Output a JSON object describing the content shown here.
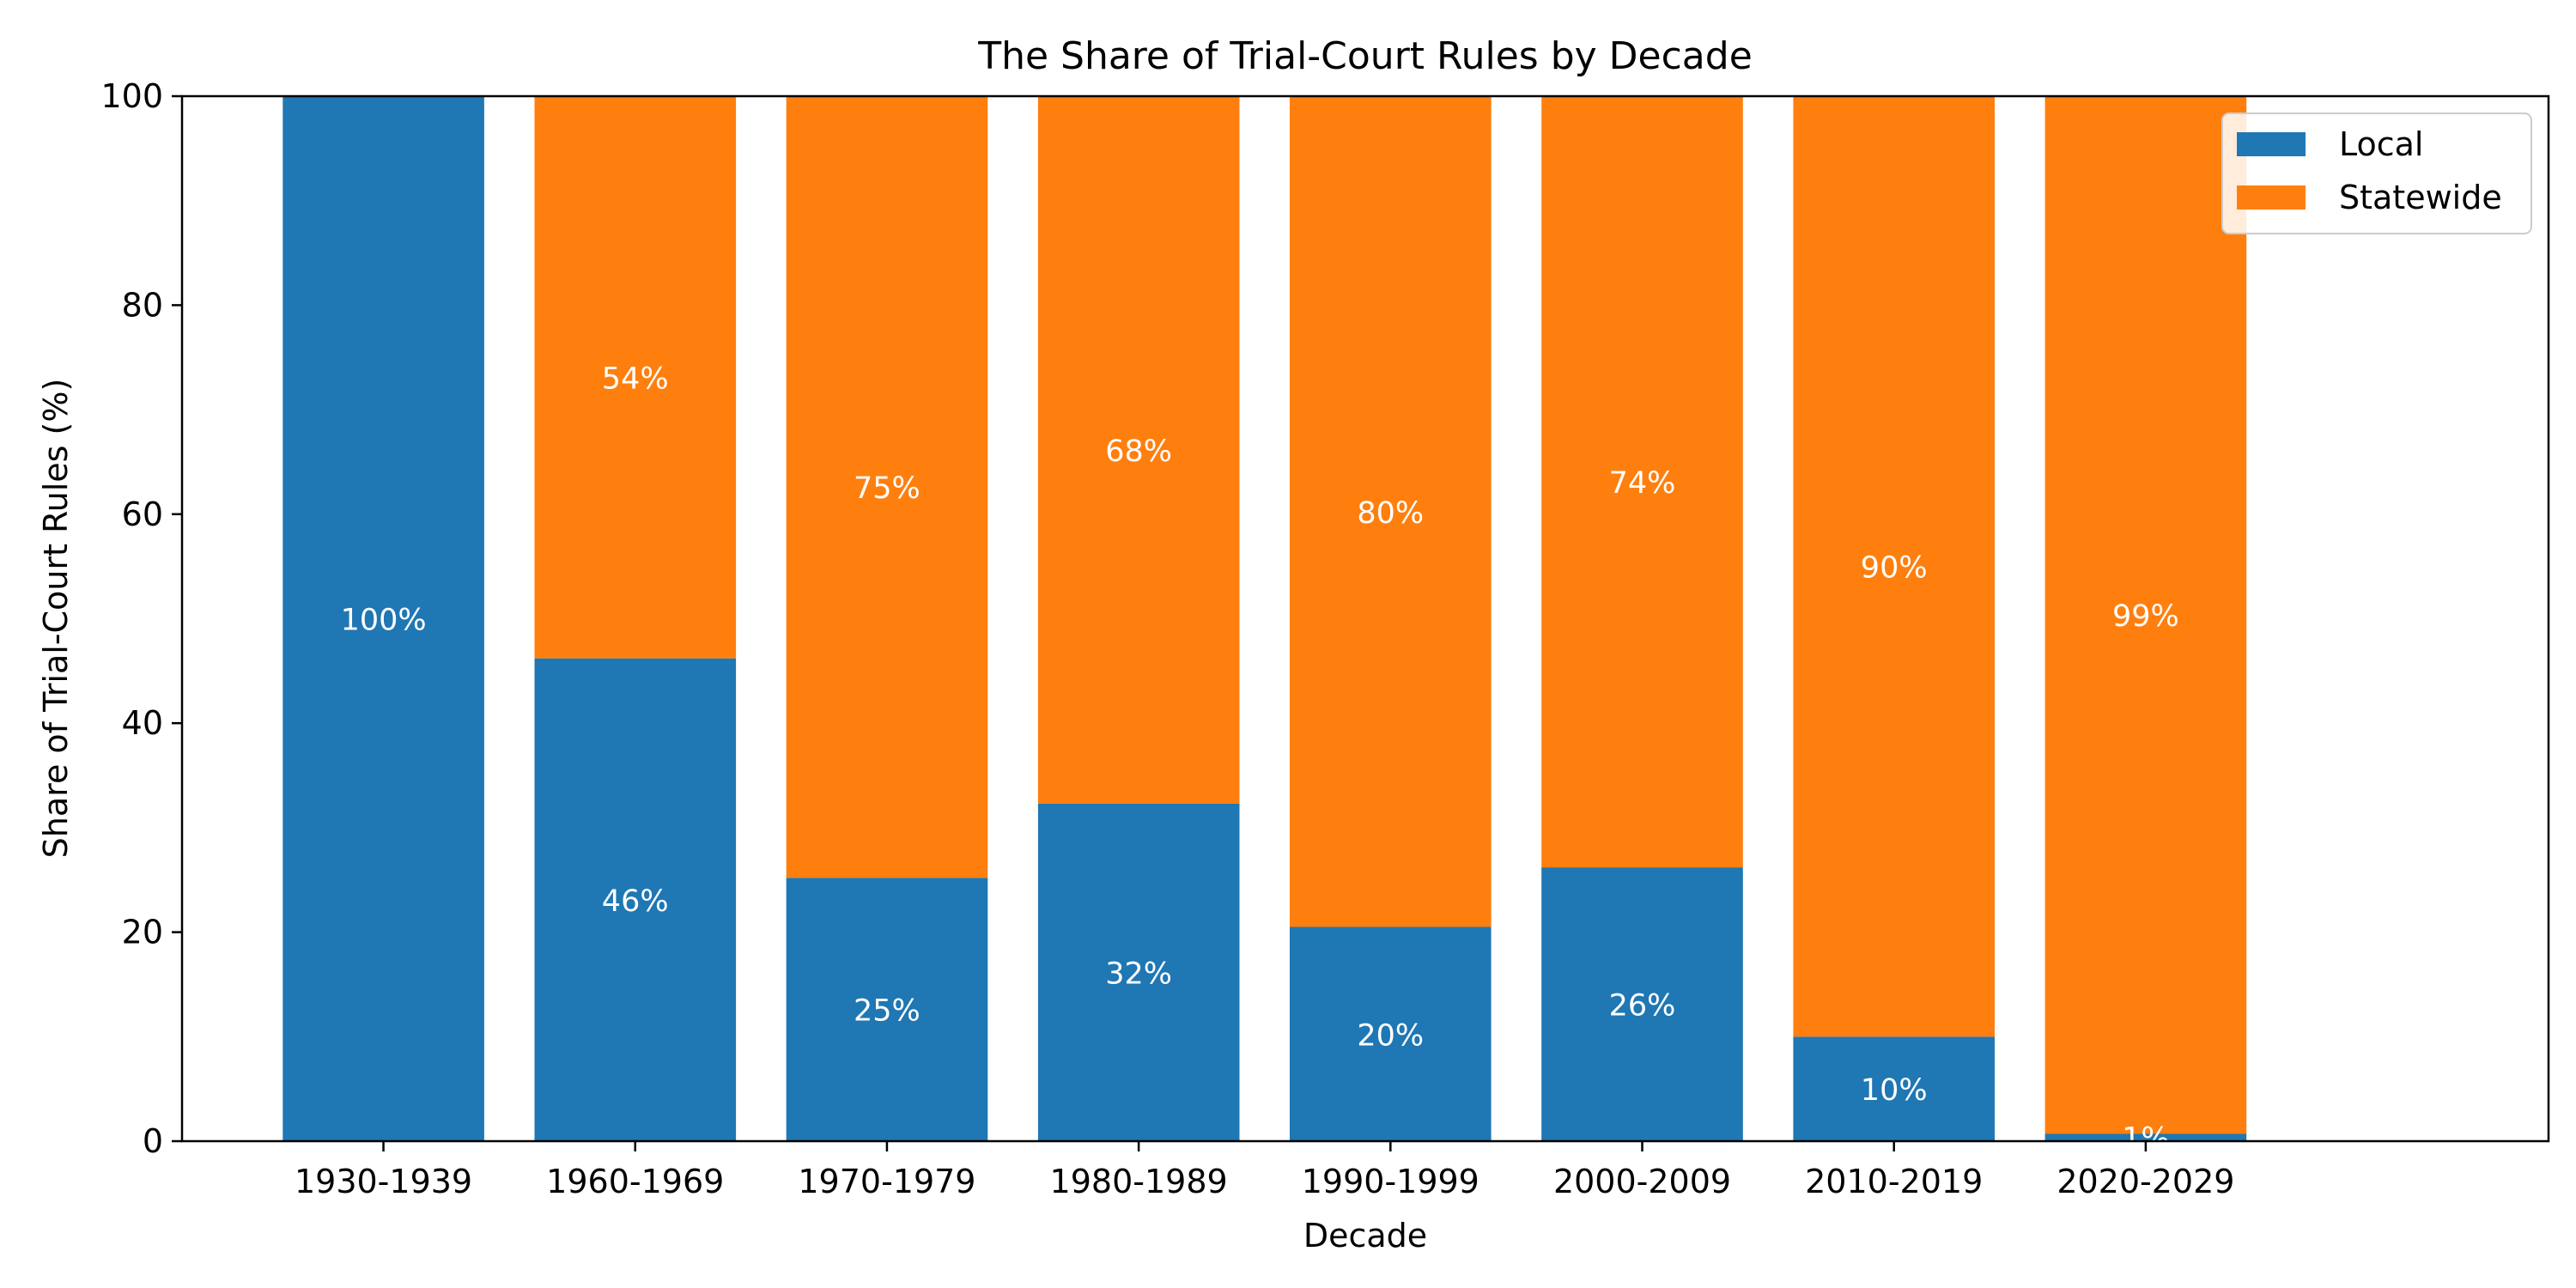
{
  "chart_data": {
    "type": "bar",
    "stacked": true,
    "title": "The Share of Trial-Court Rules by Decade",
    "xlabel": "Decade",
    "ylabel": "Share of Trial-Court Rules (%)",
    "ylim": [
      0,
      100
    ],
    "yticks": [
      0,
      20,
      40,
      60,
      80,
      100
    ],
    "grid": false,
    "legend_position": "top-right",
    "categories": [
      "1930-1939",
      "1960-1969",
      "1970-1979",
      "1980-1989",
      "1990-1999",
      "2000-2009",
      "2010-2019",
      "2020-2029"
    ],
    "series": [
      {
        "name": "Local",
        "color": "#1f77b4",
        "values": [
          100,
          46.2,
          25.2,
          32.3,
          20.5,
          26.2,
          10,
          0.7
        ],
        "labels": [
          "100%",
          "46%",
          "25%",
          "32%",
          "20%",
          "26%",
          "10%",
          "1%"
        ]
      },
      {
        "name": "Statewide",
        "color": "#ff7f0e",
        "values": [
          0,
          53.8,
          74.8,
          67.7,
          79.5,
          73.8,
          90,
          99.3
        ],
        "labels": [
          "",
          "54%",
          "75%",
          "68%",
          "80%",
          "74%",
          "90%",
          "99%"
        ]
      }
    ]
  }
}
